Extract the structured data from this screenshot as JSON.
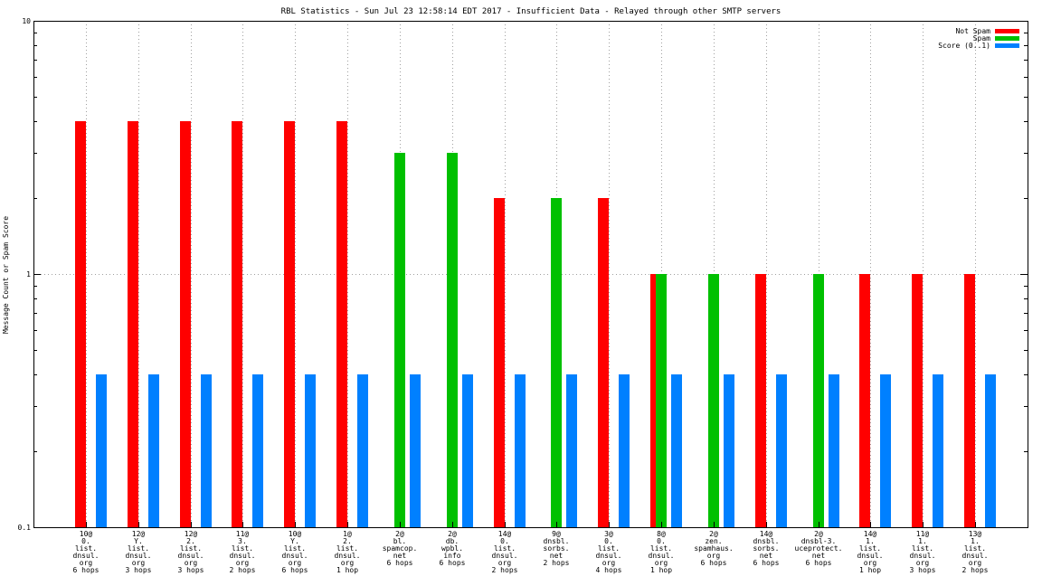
{
  "chart_data": {
    "type": "bar",
    "title": "RBL Statistics - Sun Jul 23 12:58:14 EDT 2017 - Insufficient Data - Relayed through other SMTP servers",
    "xlabel": "",
    "ylabel": "Message Count or Spam Score",
    "yscale": "log",
    "ylim": [
      0.1,
      10
    ],
    "yticks": [
      "0.1",
      "1",
      "10"
    ],
    "grid": true,
    "legend": "top-right",
    "categories": [
      [
        "10@",
        "0.",
        "list.",
        "dnsul.",
        "org",
        "6 hops"
      ],
      [
        "12@",
        "Y.",
        "list.",
        "dnsul.",
        "org",
        "3 hops"
      ],
      [
        "12@",
        "2.",
        "list.",
        "dnsul.",
        "org",
        "3 hops"
      ],
      [
        "11@",
        "3.",
        "list.",
        "dnsul.",
        "org",
        "2 hops"
      ],
      [
        "10@",
        "Y.",
        "list.",
        "dnsul.",
        "org",
        "6 hops"
      ],
      [
        "1@",
        "2.",
        "list.",
        "dnsul.",
        "org",
        "1 hop"
      ],
      [
        "2@",
        "bl.",
        "spamcop.",
        "net",
        "6 hops"
      ],
      [
        "2@",
        "db.",
        "wpbl.",
        "info",
        "6 hops"
      ],
      [
        "14@",
        "0.",
        "list.",
        "dnsul.",
        "org",
        "2 hops"
      ],
      [
        "9@",
        "dnsbl.",
        "sorbs.",
        "net",
        "2 hops"
      ],
      [
        "3@",
        "0.",
        "list.",
        "dnsul.",
        "org",
        "4 hops"
      ],
      [
        "8@",
        "0.",
        "list.",
        "dnsul.",
        "org",
        "1 hop"
      ],
      [
        "2@",
        "zen.",
        "spamhaus.",
        "org",
        "6 hops"
      ],
      [
        "14@",
        "dnsbl.",
        "sorbs.",
        "net",
        "6 hops"
      ],
      [
        "2@",
        "dnsbl-3.",
        "uceprotect.",
        "net",
        "6 hops"
      ],
      [
        "14@",
        "1.",
        "list.",
        "dnsul.",
        "org",
        "1 hop"
      ],
      [
        "11@",
        "1.",
        "list.",
        "dnsul.",
        "org",
        "3 hops"
      ],
      [
        "13@",
        "1.",
        "list.",
        "dnsul.",
        "org",
        "2 hops"
      ]
    ],
    "series": [
      {
        "name": "Not Spam",
        "color": "#ff0000",
        "values": [
          4,
          4,
          4,
          4,
          4,
          4,
          0,
          0,
          2,
          0,
          2,
          1,
          0,
          1,
          0,
          1,
          1,
          1
        ]
      },
      {
        "name": "Spam",
        "color": "#00c000",
        "values": [
          0,
          0,
          0,
          0,
          0,
          0,
          3,
          3,
          0,
          2,
          0,
          1,
          1,
          0,
          1,
          0,
          0,
          0
        ]
      },
      {
        "name": "Score (0..1)",
        "color": "#0080ff",
        "values": [
          0.4,
          0.4,
          0.4,
          0.4,
          0.4,
          0.4,
          0.4,
          0.4,
          0.4,
          0.4,
          0.4,
          0.4,
          0.4,
          0.4,
          0.4,
          0.4,
          0.4,
          0.4
        ]
      }
    ]
  }
}
